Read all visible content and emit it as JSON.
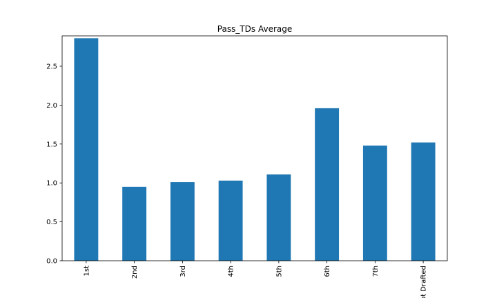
{
  "chart_data": {
    "type": "bar",
    "title": "Pass_TDs Average",
    "xlabel": "",
    "ylabel": "",
    "categories": [
      "1st",
      "2nd",
      "3rd",
      "4th",
      "5th",
      "6th",
      "7th",
      "Not Drafted"
    ],
    "values": [
      2.86,
      0.95,
      1.01,
      1.03,
      1.11,
      1.96,
      1.48,
      1.52
    ],
    "ylim": [
      0,
      2.89
    ],
    "yticks": [
      0.0,
      0.5,
      1.0,
      1.5,
      2.0,
      2.5
    ],
    "ytick_labels": [
      "0.0",
      "0.5",
      "1.0",
      "1.5",
      "2.0",
      "2.5"
    ],
    "grid": false,
    "legend": "none",
    "bar_color": "#1f77b4"
  }
}
